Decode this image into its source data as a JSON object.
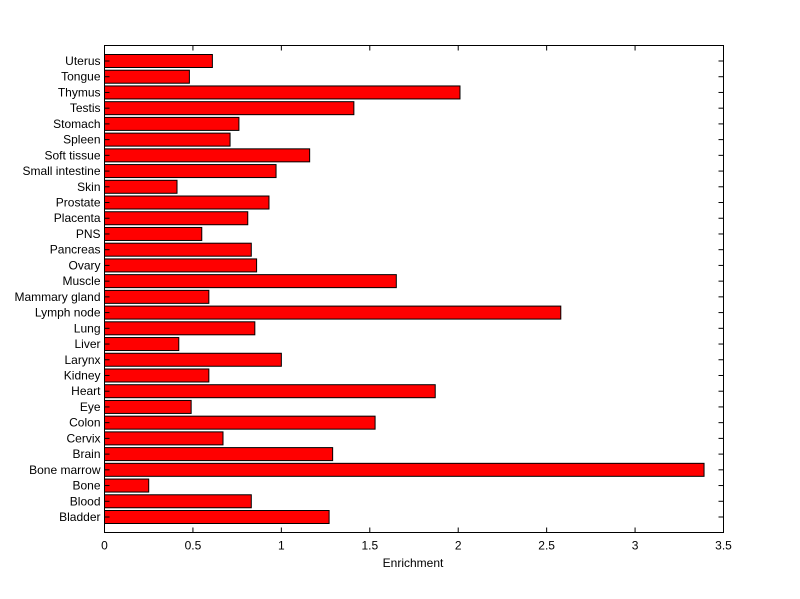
{
  "chart_data": {
    "type": "bar",
    "orientation": "horizontal",
    "title": "",
    "xlabel": "Enrichment",
    "ylabel": "",
    "xlim": [
      0,
      3.5
    ],
    "xticks": [
      "0",
      "0.5",
      "1",
      "1.5",
      "2",
      "2.5",
      "3",
      "3.5"
    ],
    "bar_color": "#ff0000",
    "categories": [
      "Bladder",
      "Blood",
      "Bone",
      "Bone marrow",
      "Brain",
      "Cervix",
      "Colon",
      "Eye",
      "Heart",
      "Kidney",
      "Larynx",
      "Liver",
      "Lung",
      "Lymph node",
      "Mammary gland",
      "Muscle",
      "Ovary",
      "Pancreas",
      "PNS",
      "Placenta",
      "Prostate",
      "Skin",
      "Small intestine",
      "Soft tissue",
      "Spleen",
      "Stomach",
      "Testis",
      "Thymus",
      "Tongue",
      "Uterus"
    ],
    "values": [
      1.27,
      0.83,
      0.25,
      3.39,
      1.29,
      0.67,
      1.53,
      0.49,
      1.87,
      0.59,
      1.0,
      0.42,
      0.85,
      2.58,
      0.59,
      1.65,
      0.86,
      0.83,
      0.55,
      0.81,
      0.93,
      0.41,
      0.97,
      1.16,
      0.71,
      0.76,
      1.41,
      2.01,
      0.48,
      0.61
    ]
  }
}
